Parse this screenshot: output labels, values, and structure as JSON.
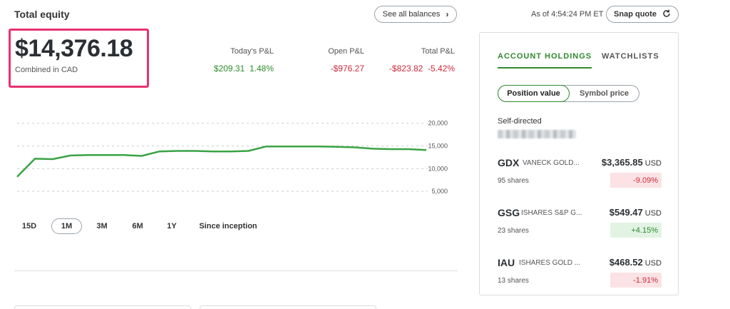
{
  "header": {
    "title": "Total equity",
    "see_all_label": "See all balances",
    "as_of": "As of 4:54:24 PM ET",
    "snap_quote_label": "Snap quote"
  },
  "equity": {
    "value": "$14,376.18",
    "subtitle": "Combined in CAD"
  },
  "pl": {
    "today": {
      "label": "Today's P&L",
      "amount": "$209.31",
      "percent": "1.48%"
    },
    "open": {
      "label": "Open P&L",
      "amount": "-$976.27"
    },
    "total": {
      "label": "Total P&L",
      "amount": "-$823.82",
      "percent": "-5.42%"
    }
  },
  "chart_data": {
    "type": "line",
    "x": [
      1,
      2,
      3,
      4,
      5,
      6,
      7,
      8,
      9,
      10,
      11,
      12,
      13,
      14,
      15,
      16,
      17,
      18,
      19,
      20,
      21,
      22,
      23,
      24
    ],
    "values": [
      8200,
      12200,
      12100,
      12900,
      13000,
      13000,
      13000,
      12800,
      13800,
      13900,
      13900,
      13800,
      13800,
      13900,
      14900,
      14900,
      14900,
      14900,
      14800,
      14700,
      14400,
      14300,
      14300,
      14100
    ],
    "y_ticks": [
      "20,000",
      "15,000",
      "10,000",
      "5,000"
    ],
    "ylim": [
      0,
      22000
    ],
    "grid": true,
    "color": "#3aa345"
  },
  "ranges": [
    "15D",
    "1M",
    "3M",
    "6M",
    "1Y",
    "Since inception"
  ],
  "active_range": "1M",
  "panel": {
    "tabs": [
      "ACCOUNT HOLDINGS",
      "WATCHLISTS"
    ],
    "toggle": {
      "selected": "Position value",
      "other": "Symbol price"
    },
    "account_label": "Self-directed"
  },
  "holdings": [
    {
      "symbol": "GDX",
      "name": "VANECK GOLD...",
      "value": "$3,365.85",
      "currency": "USD",
      "shares": "95 shares",
      "change": "-9.09%",
      "direction": "neg"
    },
    {
      "symbol": "GSG",
      "name": "ISHARES S&P G...",
      "value": "$549.47",
      "currency": "USD",
      "shares": "23 shares",
      "change": "+4.15%",
      "direction": "pos"
    },
    {
      "symbol": "IAU",
      "name": "ISHARES GOLD ...",
      "value": "$468.52",
      "currency": "USD",
      "shares": "13 shares",
      "change": "-1.91%",
      "direction": "neg"
    }
  ],
  "colors": {
    "accent": "#2e8b2e",
    "negative": "#cc2a3a",
    "highlight": "#e8336e"
  }
}
